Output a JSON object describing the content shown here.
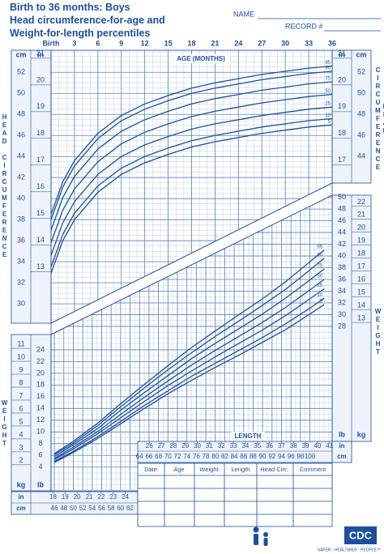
{
  "header": {
    "title_lines": [
      "Birth to 36 months: Boys",
      "Head circumference-for-age and",
      "Weight-for-length percentiles"
    ],
    "name_label": "NAME",
    "record_label": "RECORD #"
  },
  "chart_data": [
    {
      "type": "line",
      "x_label": "AGE (MONTHS)",
      "y_title": "HEAD CIRCUMFERENCE",
      "y_label": "cm",
      "y2_label": "in",
      "x": [
        0,
        1.5,
        3,
        6,
        9,
        12,
        15,
        18,
        21,
        24,
        27,
        30,
        33,
        36
      ],
      "xlim": [
        0,
        36
      ],
      "xticks": [
        {
          "value": 0,
          "label": "Birth"
        },
        3,
        6,
        9,
        12,
        15,
        18,
        21,
        24,
        27,
        30,
        33,
        36
      ],
      "ylim": [
        27.7,
        54.1
      ],
      "yticks": [
        30,
        32,
        34,
        36,
        38,
        40,
        42,
        44,
        46,
        48,
        50,
        52
      ],
      "yticks_right": [
        44,
        46,
        48,
        50,
        52
      ],
      "y2lim": [
        10.9,
        21.3
      ],
      "y2ticks": [
        13,
        14,
        15,
        16,
        17,
        18,
        19,
        20,
        21
      ],
      "y2ticks_right": [
        17,
        18,
        19,
        20,
        21
      ],
      "grid": true,
      "series": [
        {
          "name": "95",
          "color": "#1c4f9c",
          "values": [
            38.5,
            41.6,
            43.6,
            46.2,
            47.9,
            49.0,
            49.8,
            50.5,
            51.0,
            51.4,
            51.8,
            52.1,
            52.4,
            52.6
          ]
        },
        {
          "name": "90",
          "color": "#1c4f9c",
          "values": [
            38.0,
            41.1,
            43.1,
            45.7,
            47.4,
            48.5,
            49.3,
            50.0,
            50.5,
            50.9,
            51.3,
            51.6,
            51.9,
            52.1
          ]
        },
        {
          "name": "75",
          "color": "#1c4f9c",
          "values": [
            37.0,
            40.1,
            42.1,
            44.7,
            46.4,
            47.5,
            48.3,
            49.0,
            49.5,
            49.9,
            50.3,
            50.6,
            50.9,
            51.1
          ]
        },
        {
          "name": "50",
          "color": "#1c4f9c",
          "values": [
            35.8,
            38.9,
            40.9,
            43.5,
            45.2,
            46.3,
            47.1,
            47.8,
            48.3,
            48.7,
            49.1,
            49.4,
            49.7,
            49.9
          ]
        },
        {
          "name": "25",
          "color": "#1c4f9c",
          "values": [
            34.6,
            37.7,
            39.7,
            42.3,
            44.0,
            45.1,
            45.9,
            46.6,
            47.1,
            47.5,
            47.9,
            48.2,
            48.5,
            48.7
          ]
        },
        {
          "name": "10",
          "color": "#1c4f9c",
          "values": [
            33.5,
            36.6,
            38.6,
            41.2,
            42.9,
            44.0,
            44.8,
            45.5,
            46.0,
            46.4,
            46.8,
            47.1,
            47.4,
            47.6
          ]
        },
        {
          "name": "5",
          "color": "#1c4f9c",
          "values": [
            32.9,
            36.0,
            38.0,
            40.6,
            42.3,
            43.4,
            44.2,
            44.9,
            45.4,
            45.8,
            46.2,
            46.5,
            46.8,
            47.0
          ]
        }
      ]
    },
    {
      "type": "line",
      "x_label": "LENGTH",
      "y_title": "WEIGHT",
      "y_label": "lb",
      "y2_label": "kg",
      "x_unit": "cm",
      "x2_unit": "in",
      "x": [
        46,
        50,
        55,
        60,
        65,
        70,
        75,
        80,
        85,
        90,
        95,
        100,
        103
      ],
      "xlim": [
        45.3,
        104.7
      ],
      "xticks": [
        46,
        48,
        50,
        52,
        54,
        56,
        58,
        60,
        62,
        64,
        66,
        68,
        70,
        72,
        74,
        76,
        78,
        80,
        82,
        84,
        86,
        88,
        90,
        92,
        94,
        96,
        98,
        100
      ],
      "x2lim": [
        17.83,
        41.22
      ],
      "x2ticks": [
        18,
        19,
        20,
        21,
        22,
        23,
        24,
        26,
        27,
        28,
        29,
        30,
        31,
        32,
        33,
        34,
        35,
        36,
        37,
        38,
        39,
        40,
        41
      ],
      "ylim": [
        0.1,
        50.5
      ],
      "yticks": [
        4,
        6,
        8,
        10,
        12,
        14,
        16,
        18,
        20,
        22,
        24
      ],
      "yticks_right": [
        28,
        30,
        32,
        34,
        36,
        38,
        40,
        42,
        44,
        46,
        48,
        50
      ],
      "y2lim": [
        0.05,
        22.9
      ],
      "y2ticks": [
        2,
        3,
        4,
        5,
        6,
        7,
        8,
        9,
        10,
        11
      ],
      "y2ticks_right": [
        13,
        14,
        15,
        16,
        17,
        18,
        19,
        20,
        21,
        22
      ],
      "grid": true,
      "series": [
        {
          "name": "95",
          "color": "#1c4f9c",
          "values": [
            6.3,
            8.4,
            11.4,
            14.8,
            18.1,
            21.3,
            24.4,
            27.2,
            30.0,
            32.7,
            35.7,
            39.0,
            41.0
          ]
        },
        {
          "name": "90",
          "color": "#1c4f9c",
          "values": [
            6.1,
            8.1,
            11.0,
            14.3,
            17.5,
            20.6,
            23.5,
            26.3,
            28.9,
            31.6,
            34.4,
            37.6,
            39.6
          ]
        },
        {
          "name": "75",
          "color": "#1c4f9c",
          "values": [
            5.8,
            7.8,
            10.5,
            13.7,
            16.7,
            19.6,
            22.5,
            25.1,
            27.6,
            30.1,
            32.9,
            35.9,
            37.8
          ]
        },
        {
          "name": "50",
          "color": "#1c4f9c",
          "values": [
            5.5,
            7.4,
            10.0,
            13.0,
            15.9,
            18.7,
            21.4,
            23.9,
            26.3,
            28.7,
            31.3,
            34.2,
            36.0
          ]
        },
        {
          "name": "25",
          "color": "#1c4f9c",
          "values": [
            5.3,
            7.1,
            9.6,
            12.4,
            15.2,
            17.9,
            20.4,
            22.8,
            25.1,
            27.4,
            29.9,
            32.7,
            34.4
          ]
        },
        {
          "name": "10",
          "color": "#1c4f9c",
          "values": [
            5.0,
            6.7,
            9.1,
            11.8,
            14.5,
            17.0,
            19.5,
            21.7,
            23.9,
            26.1,
            28.5,
            31.1,
            32.8
          ]
        },
        {
          "name": "5",
          "color": "#1c4f9c",
          "values": [
            4.8,
            6.5,
            8.8,
            11.4,
            14.0,
            16.5,
            18.8,
            21.0,
            23.1,
            25.3,
            27.5,
            30.1,
            31.7
          ]
        }
      ]
    }
  ],
  "table": {
    "headers": [
      "Date",
      "Age",
      "Weight",
      "Length",
      "Head Circ.",
      "Comment"
    ]
  },
  "footer": {
    "logo": "CDC",
    "tagline": "SAFER · HEALTHIER · PEOPLE™"
  }
}
